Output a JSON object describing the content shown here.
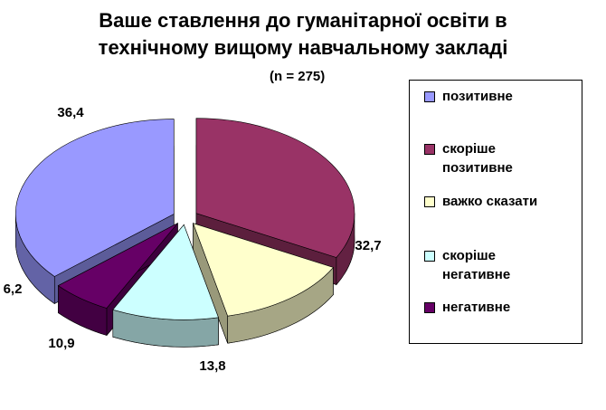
{
  "chart_data": {
    "type": "pie",
    "title": [
      "Ваше ставлення до гуманітарної освіти в",
      "технічному вищому навчальному закладі"
    ],
    "subtitle": "(n = 275)",
    "categories": [
      "позитивне",
      "скоріше позитивне",
      "важко сказати",
      "скоріше негативне",
      "негативне"
    ],
    "values": [
      36.4,
      32.7,
      13.8,
      10.9,
      6.2
    ],
    "value_labels": [
      "36,4",
      "32,7",
      "13,8",
      "10,9",
      "6,2"
    ],
    "colors": [
      "#9999ff",
      "#993366",
      "#ffffcc",
      "#ccffff",
      "#660066"
    ],
    "legend": "right"
  }
}
